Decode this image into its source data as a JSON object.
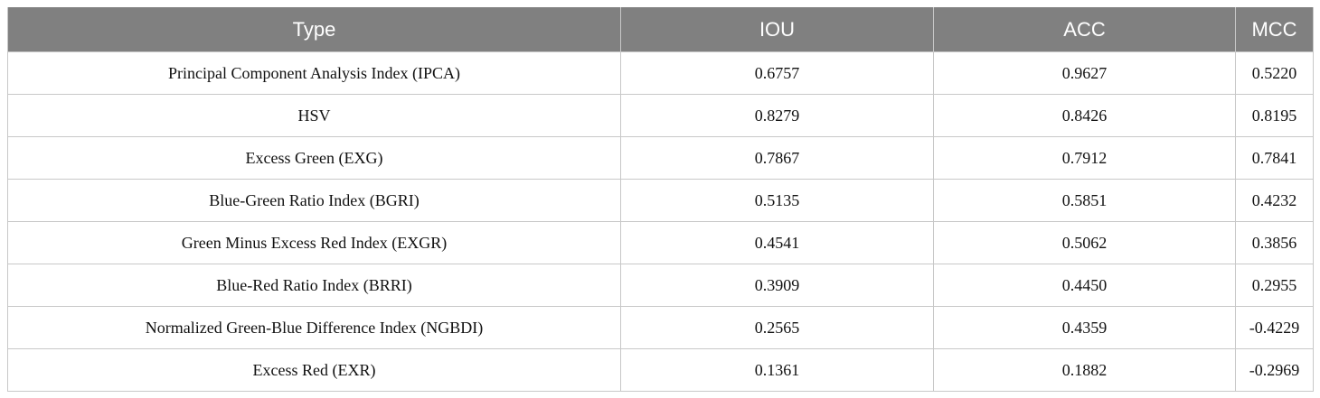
{
  "table": {
    "header": [
      "Type",
      "IOU",
      "ACC",
      "MCC"
    ],
    "rows": [
      [
        "Principal Component Analysis Index (IPCA)",
        "0.6757",
        "0.9627",
        "0.5220"
      ],
      [
        "HSV",
        "0.8279",
        "0.8426",
        "0.8195"
      ],
      [
        "Excess Green (EXG)",
        "0.7867",
        "0.7912",
        "0.7841"
      ],
      [
        "Blue-Green Ratio Index (BGRI)",
        "0.5135",
        "0.5851",
        "0.4232"
      ],
      [
        "Green Minus Excess Red Index (EXGR)",
        "0.4541",
        "0.5062",
        "0.3856"
      ],
      [
        "Blue-Red Ratio Index (BRRI)",
        "0.3909",
        "0.4450",
        "0.2955"
      ],
      [
        "Normalized Green-Blue Difference Index (NGBDI)",
        "0.2565",
        "0.4359",
        "-0.4229"
      ],
      [
        "Excess Red (EXR)",
        "0.1361",
        "0.1882",
        "-0.2969"
      ]
    ]
  }
}
